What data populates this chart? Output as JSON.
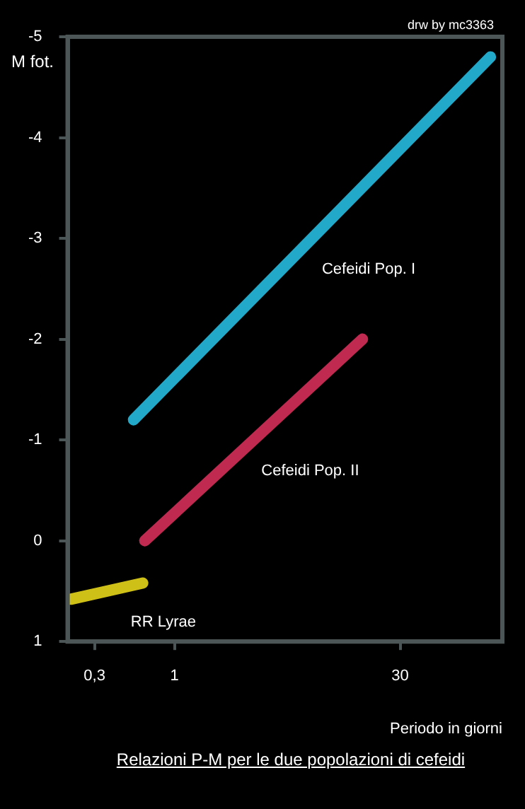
{
  "chart_data": {
    "type": "line",
    "title": "Relazioni P-M per le due popolazioni di cefeidi",
    "xlabel": "Periodo in giorni",
    "ylabel": "M fot.",
    "annotations": [
      "drw by mc3363"
    ],
    "series": [
      {
        "name": "Cefeidi Pop. I",
        "color": "#22a8c8",
        "x": [
          0.54,
          117
        ],
        "values": [
          -1.2,
          -4.8
        ]
      },
      {
        "name": "Cefeidi Pop. II",
        "color": "#c02a50",
        "x": [
          0.64,
          17
        ],
        "values": [
          0,
          -2
        ]
      },
      {
        "name": "RR Lyrae",
        "color": "#cfc018",
        "x": [
          0.21,
          0.62
        ],
        "values": [
          0.58,
          0.42
        ]
      }
    ],
    "log": "x",
    "xlim": [
      0.2,
      140
    ],
    "xticks": [
      {
        "value": 0.3,
        "label": "0,3"
      },
      1,
      30
    ],
    "ylim": [
      1,
      -5
    ],
    "yticks": [
      -5,
      -4,
      -3,
      -2,
      -1,
      0,
      1
    ],
    "grid": false,
    "legend": false,
    "marker": "none",
    "line_style": "solid"
  }
}
